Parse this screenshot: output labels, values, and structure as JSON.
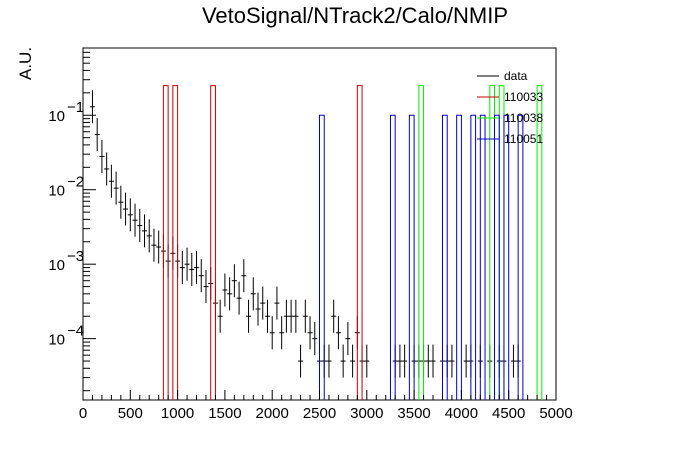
{
  "chart_data": {
    "type": "histogram",
    "title": "VetoSignal/NTrack2/Calo/NMIP",
    "ylabel": "A.U.",
    "xlabel": "",
    "xlim": [
      0,
      5000
    ],
    "ylim": [
      1.5e-05,
      0.8
    ],
    "log_y": true,
    "grid": false,
    "legend_position": "top-right",
    "x_ticks": [
      {
        "value": 0,
        "label": "0"
      },
      {
        "value": 500,
        "label": "500"
      },
      {
        "value": 1000,
        "label": "1000"
      },
      {
        "value": 1500,
        "label": "1500"
      },
      {
        "value": 2000,
        "label": "2000"
      },
      {
        "value": 2500,
        "label": "2500"
      },
      {
        "value": 3000,
        "label": "3000"
      },
      {
        "value": 3500,
        "label": "3500"
      },
      {
        "value": 4000,
        "label": "4000"
      },
      {
        "value": 4500,
        "label": "4500"
      },
      {
        "value": 5000,
        "label": "5000"
      }
    ],
    "y_ticks": [
      {
        "value": 0.1,
        "label": "10",
        "exp": "−1"
      },
      {
        "value": 0.01,
        "label": "10",
        "exp": "−2"
      },
      {
        "value": 0.001,
        "label": "10",
        "exp": "−3"
      },
      {
        "value": 0.0001,
        "label": "10",
        "exp": "−4"
      }
    ],
    "series": [
      {
        "name": "data",
        "color": "#000000",
        "style": "errorbar",
        "points": [
          [
            100,
            0.13
          ],
          [
            150,
            0.055
          ],
          [
            200,
            0.028
          ],
          [
            250,
            0.019
          ],
          [
            300,
            0.013
          ],
          [
            350,
            0.0105
          ],
          [
            400,
            0.0068
          ],
          [
            450,
            0.0055
          ],
          [
            500,
            0.0046
          ],
          [
            550,
            0.0039
          ],
          [
            600,
            0.0033
          ],
          [
            650,
            0.0028
          ],
          [
            700,
            0.0024
          ],
          [
            750,
            0.0018
          ],
          [
            800,
            0.0017
          ],
          [
            850,
            0.0015
          ],
          [
            900,
            0.0011
          ],
          [
            950,
            0.0014
          ],
          [
            1000,
            0.0011
          ],
          [
            1050,
            0.0009
          ],
          [
            1100,
            0.001
          ],
          [
            1150,
            0.00085
          ],
          [
            1200,
            0.0009
          ],
          [
            1250,
            0.0007
          ],
          [
            1300,
            0.0005
          ],
          [
            1350,
            0.00055
          ],
          [
            1400,
            0.0003
          ],
          [
            1450,
            0.0002
          ],
          [
            1500,
            0.00045
          ],
          [
            1550,
            0.0004
          ],
          [
            1600,
            0.0006
          ],
          [
            1650,
            0.00035
          ],
          [
            1700,
            0.0007
          ],
          [
            1750,
            0.0002
          ],
          [
            1800,
            0.0004
          ],
          [
            1850,
            0.00025
          ],
          [
            1900,
            0.0003
          ],
          [
            1950,
            0.0002
          ],
          [
            2000,
            0.00012
          ],
          [
            2050,
            0.0003
          ],
          [
            2100,
            0.00012
          ],
          [
            2150,
            0.0002
          ],
          [
            2200,
            0.0002
          ],
          [
            2250,
            0.0002
          ],
          [
            2300,
            5e-05
          ],
          [
            2350,
            0.0002
          ],
          [
            2400,
            0.00012
          ],
          [
            2450,
            0.0001
          ],
          [
            2500,
            5e-05
          ],
          [
            2550,
            5e-05
          ],
          [
            2600,
            5e-05
          ],
          [
            2650,
            0.0002
          ],
          [
            2700,
            0.00012
          ],
          [
            2750,
            5e-05
          ],
          [
            2800,
            0.0001
          ],
          [
            2850,
            5e-05
          ],
          [
            2900,
            0.00012
          ],
          [
            2950,
            5e-05
          ],
          [
            3000,
            5e-05
          ],
          [
            3300,
            5e-05
          ],
          [
            3350,
            5e-05
          ],
          [
            3400,
            5e-05
          ],
          [
            3500,
            5e-05
          ],
          [
            3550,
            5e-05
          ],
          [
            3600,
            5e-05
          ],
          [
            3650,
            5e-05
          ],
          [
            3700,
            5e-05
          ],
          [
            3800,
            5e-05
          ],
          [
            3850,
            5e-05
          ],
          [
            3900,
            5e-05
          ],
          [
            4050,
            5e-05
          ],
          [
            4100,
            5e-05
          ],
          [
            4200,
            5e-05
          ],
          [
            4300,
            5e-05
          ],
          [
            4400,
            5e-05
          ],
          [
            4450,
            5e-05
          ],
          [
            4550,
            5e-05
          ],
          [
            4600,
            5e-05
          ]
        ]
      },
      {
        "name": "110033",
        "color": "#cc0000",
        "style": "hist",
        "bins": [
          [
            850,
            900,
            0.25
          ],
          [
            950,
            1000,
            0.25
          ],
          [
            1350,
            1400,
            0.25
          ],
          [
            2900,
            2950,
            0.25
          ]
        ]
      },
      {
        "name": "110038",
        "color": "#00ee00",
        "style": "hist",
        "bins": [
          [
            3550,
            3600,
            0.25
          ],
          [
            4300,
            4350,
            0.25
          ],
          [
            4400,
            4450,
            0.25
          ],
          [
            4800,
            4850,
            0.25
          ]
        ]
      },
      {
        "name": "110051",
        "color": "#0000cc",
        "style": "hist",
        "bins": [
          [
            2500,
            2550,
            0.1
          ],
          [
            3250,
            3300,
            0.1
          ],
          [
            3450,
            3500,
            0.1
          ],
          [
            3800,
            3850,
            0.1
          ],
          [
            3950,
            4000,
            0.1
          ],
          [
            4100,
            4150,
            0.1
          ],
          [
            4200,
            4250,
            0.1
          ],
          [
            4350,
            4400,
            0.1
          ],
          [
            4450,
            4500,
            0.1
          ],
          [
            4600,
            4650,
            0.1
          ]
        ]
      }
    ]
  }
}
